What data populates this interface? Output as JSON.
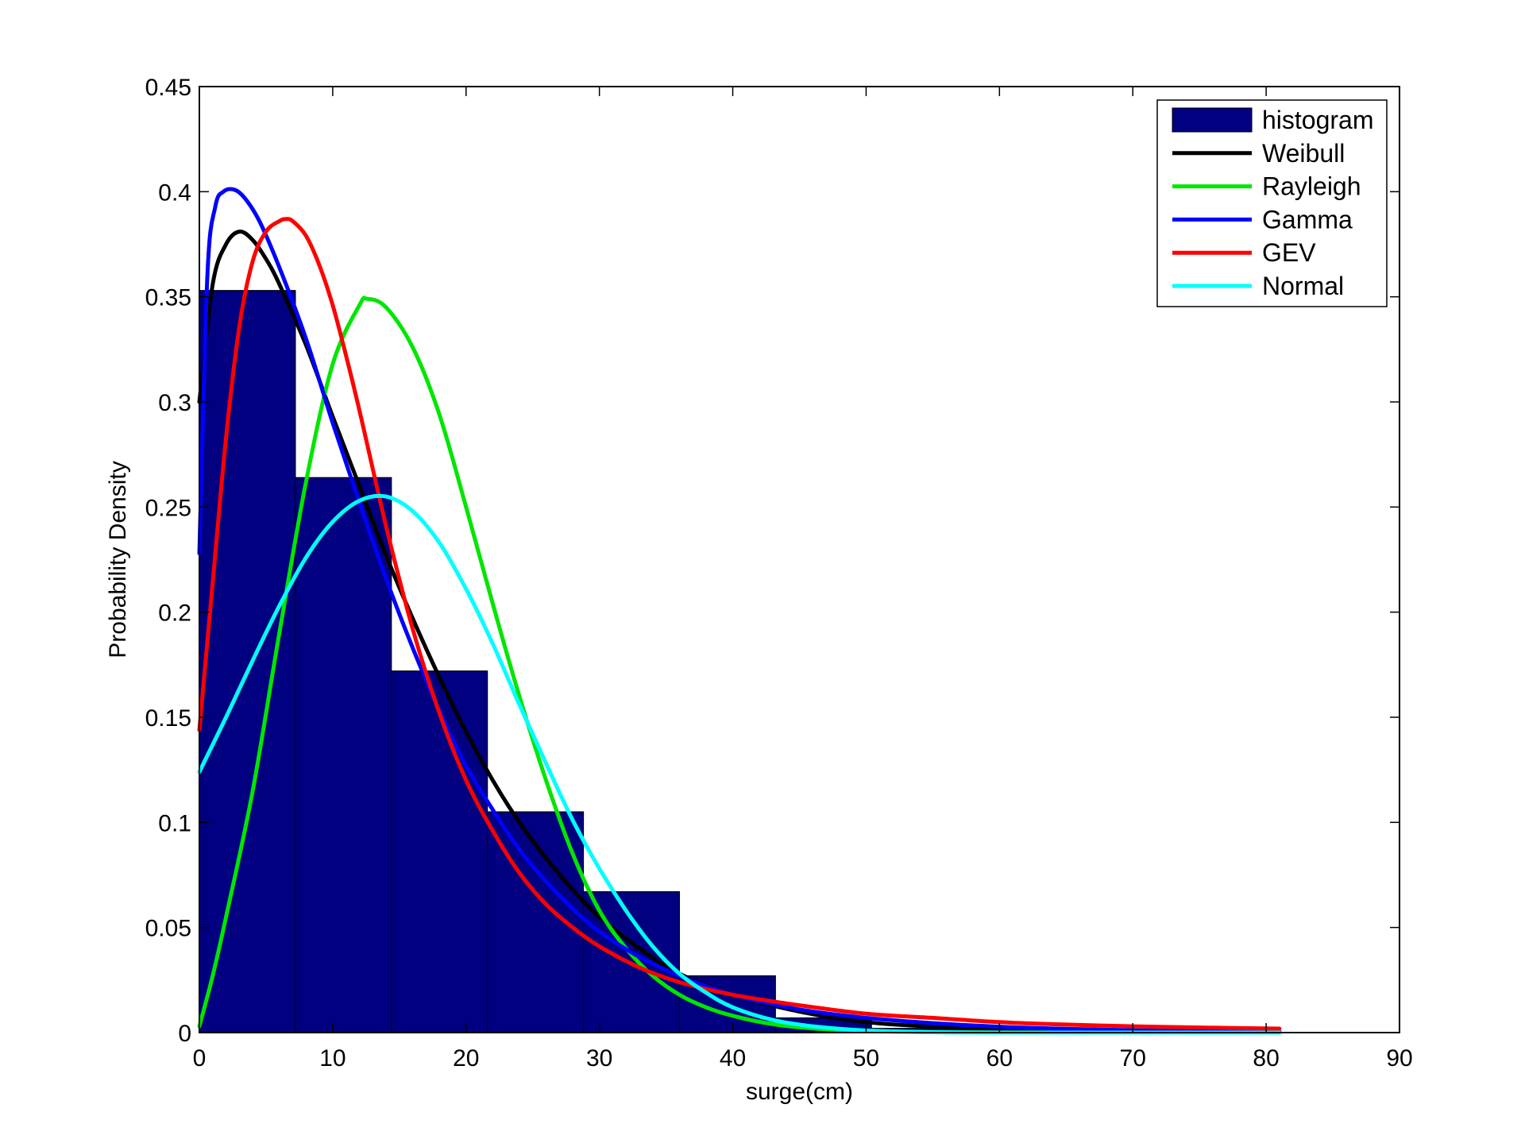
{
  "chart_data": {
    "type": "bar",
    "title": "",
    "xlabel": "surge(cm)",
    "ylabel": "Probability Density",
    "xlim": [
      0,
      90
    ],
    "ylim": [
      0,
      0.45
    ],
    "xticks": [
      0,
      10,
      20,
      30,
      40,
      50,
      60,
      70,
      80,
      90
    ],
    "yticks": [
      0,
      0.05,
      0.1,
      0.15,
      0.2,
      0.25,
      0.3,
      0.35,
      0.4,
      0.45
    ],
    "xtick_labels": [
      "0",
      "10",
      "20",
      "30",
      "40",
      "50",
      "60",
      "70",
      "80",
      "90"
    ],
    "ytick_labels": [
      "0",
      "0.05",
      "0.1",
      "0.15",
      "0.2",
      "0.25",
      "0.3",
      "0.35",
      "0.4",
      "0.45"
    ],
    "grid": false,
    "legend_position": "top-right",
    "histogram": {
      "name": "histogram",
      "color": "#000080",
      "bin_edges": [
        0,
        7.2,
        14.4,
        21.6,
        28.8,
        36.0,
        43.2,
        50.4,
        57.6,
        64.8,
        72.0,
        79.2
      ],
      "values": [
        0.353,
        0.264,
        0.172,
        0.105,
        0.067,
        0.027,
        0.007,
        0.002,
        0.001,
        0.0005,
        0.0003
      ]
    },
    "series": [
      {
        "name": "Weibull",
        "color": "#000000",
        "x": [
          0,
          1,
          2,
          3,
          4,
          5,
          6,
          8,
          10,
          12,
          14,
          16,
          18,
          20,
          22,
          24,
          26,
          28,
          30,
          33,
          36,
          40,
          45,
          50,
          55,
          60,
          65,
          70,
          75,
          81
        ],
        "y": [
          0.3,
          0.356,
          0.375,
          0.381,
          0.377,
          0.368,
          0.356,
          0.327,
          0.293,
          0.26,
          0.227,
          0.197,
          0.169,
          0.143,
          0.12,
          0.1,
          0.083,
          0.068,
          0.055,
          0.04,
          0.028,
          0.018,
          0.01,
          0.005,
          0.0028,
          0.0015,
          0.0008,
          0.0004,
          0.0002,
          0.0001
        ]
      },
      {
        "name": "Rayleigh",
        "color": "#00e600",
        "x": [
          0,
          1,
          2,
          4,
          6,
          8,
          10,
          12,
          12.6,
          14,
          16,
          18,
          20,
          22,
          24,
          26,
          28,
          30,
          32,
          34,
          36,
          38,
          40,
          43,
          46,
          50,
          55,
          60,
          70,
          81
        ],
        "y": [
          0.003,
          0.027,
          0.055,
          0.115,
          0.19,
          0.262,
          0.318,
          0.346,
          0.349,
          0.345,
          0.326,
          0.294,
          0.25,
          0.204,
          0.16,
          0.12,
          0.085,
          0.058,
          0.04,
          0.027,
          0.018,
          0.012,
          0.008,
          0.004,
          0.002,
          0.0008,
          0.0002,
          5e-05,
          0,
          0
        ]
      },
      {
        "name": "Gamma",
        "color": "#0000ff",
        "x": [
          0,
          0.6,
          1.2,
          1.8,
          2.6,
          3.4,
          4.5,
          6,
          8,
          10,
          12,
          14,
          16,
          18,
          20,
          22,
          24,
          26,
          28,
          30,
          33,
          36,
          40,
          45,
          50,
          55,
          60,
          65,
          70,
          75,
          81
        ],
        "y": [
          0.228,
          0.36,
          0.393,
          0.4,
          0.401,
          0.397,
          0.386,
          0.364,
          0.33,
          0.29,
          0.252,
          0.216,
          0.183,
          0.153,
          0.127,
          0.106,
          0.087,
          0.072,
          0.059,
          0.048,
          0.036,
          0.027,
          0.018,
          0.011,
          0.007,
          0.0045,
          0.0028,
          0.0018,
          0.0011,
          0.0007,
          0.0004
        ]
      },
      {
        "name": "GEV",
        "color": "#ff0000",
        "x": [
          0,
          1,
          2,
          3,
          4,
          5,
          6,
          6.5,
          7,
          8,
          9,
          10,
          11,
          12,
          14,
          16,
          18,
          20,
          22,
          24,
          26,
          28,
          30,
          33,
          36,
          40,
          45,
          50,
          55,
          60,
          65,
          70,
          75,
          81
        ],
        "y": [
          0.144,
          0.214,
          0.283,
          0.336,
          0.367,
          0.381,
          0.386,
          0.387,
          0.386,
          0.379,
          0.365,
          0.346,
          0.322,
          0.296,
          0.241,
          0.192,
          0.152,
          0.12,
          0.096,
          0.076,
          0.061,
          0.05,
          0.041,
          0.031,
          0.024,
          0.018,
          0.013,
          0.009,
          0.007,
          0.005,
          0.0038,
          0.003,
          0.0024,
          0.0019
        ]
      },
      {
        "name": "Normal",
        "color": "#00ffff",
        "x": [
          0,
          2,
          4,
          6,
          8,
          10,
          12,
          14,
          16,
          18,
          20,
          22,
          24,
          26,
          28,
          30,
          32,
          34,
          36,
          38,
          40,
          43,
          46,
          50,
          55,
          60,
          70,
          81
        ],
        "y": [
          0.124,
          0.15,
          0.177,
          0.203,
          0.226,
          0.243,
          0.253,
          0.255,
          0.248,
          0.233,
          0.211,
          0.185,
          0.156,
          0.128,
          0.101,
          0.078,
          0.058,
          0.041,
          0.028,
          0.019,
          0.012,
          0.006,
          0.003,
          0.001,
          0.0002,
          0,
          0,
          0
        ]
      }
    ]
  }
}
